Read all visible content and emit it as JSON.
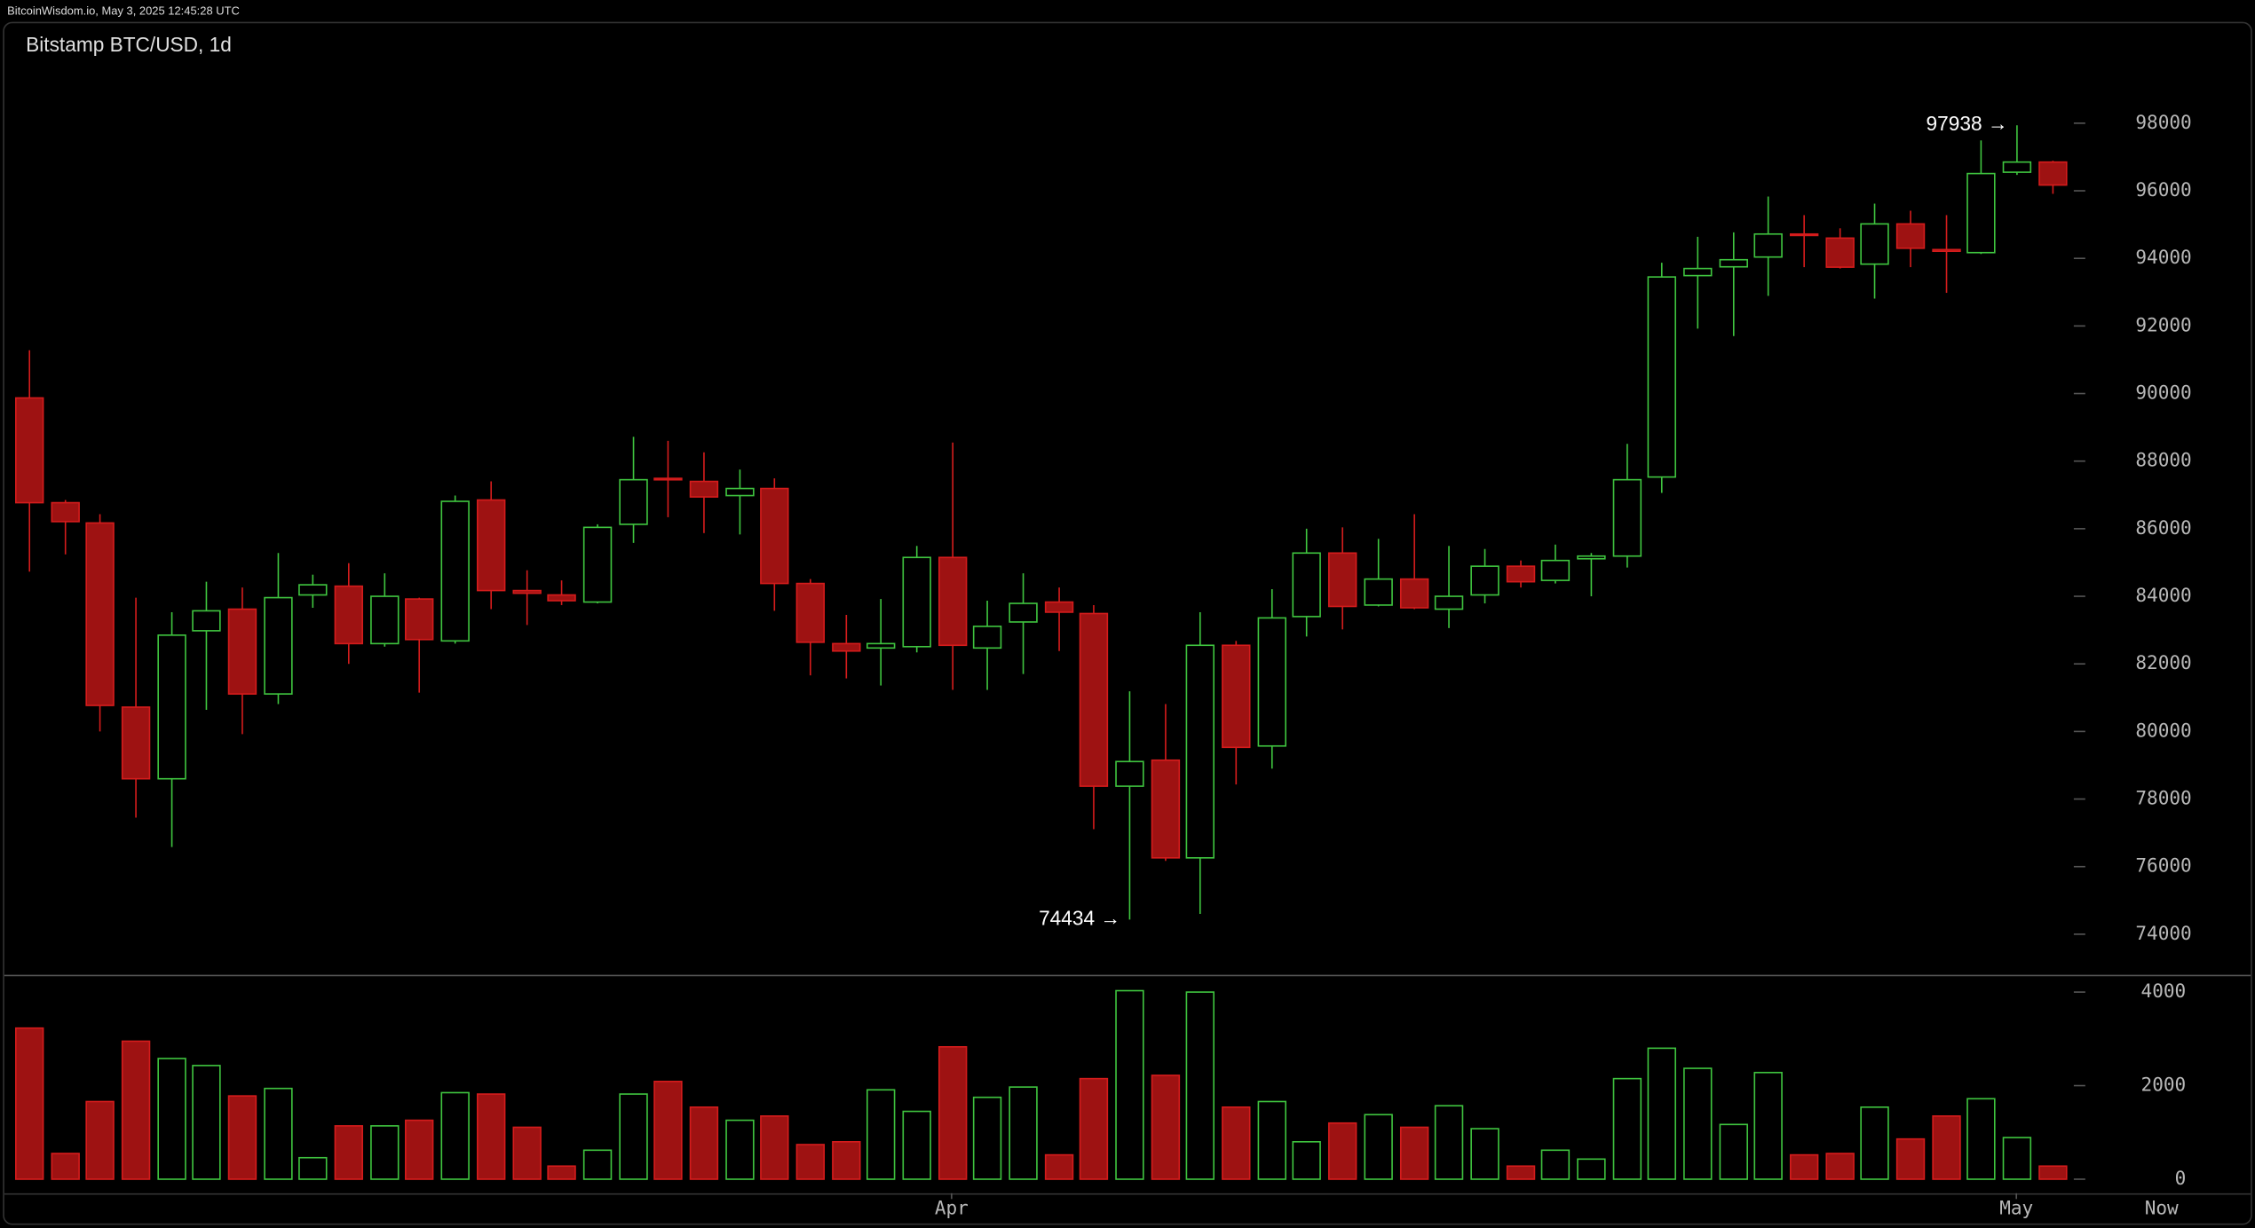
{
  "header": "BitcoinWisdom.io, May 3, 2025 12:45:28 UTC",
  "chart_data": {
    "type": "candlestick",
    "title": "Bitstamp BTC/USD, 1d",
    "categories": [
      null,
      null,
      null,
      null,
      null,
      null,
      null,
      null,
      null,
      null,
      null,
      null,
      null,
      null,
      null,
      null,
      null,
      null,
      null,
      null,
      null,
      null,
      null,
      null,
      null,
      null,
      "Apr",
      null,
      null,
      null,
      null,
      null,
      null,
      null,
      null,
      null,
      null,
      null,
      null,
      null,
      null,
      null,
      null,
      null,
      null,
      null,
      null,
      null,
      null,
      null,
      null,
      null,
      null,
      null,
      null,
      null,
      "May",
      null
    ],
    "now_label": "Now",
    "open": [
      89870,
      86770,
      86170,
      80720,
      78600,
      82980,
      83620,
      81110,
      84040,
      84300,
      82600,
      83920,
      82680,
      86850,
      84170,
      84040,
      83830,
      86130,
      87490,
      87400,
      86980,
      87190,
      84380,
      82600,
      82470,
      82510,
      85150,
      82470,
      83240,
      83830,
      83490,
      78380,
      79150,
      76260,
      82550,
      79570,
      83400,
      85280,
      83740,
      84510,
      83620,
      84040,
      84890,
      84470,
      85110,
      85190,
      87530,
      93490,
      93750,
      94040,
      94720,
      94600,
      93830,
      95020,
      94260,
      94170,
      96550,
      96850
    ],
    "high": [
      91280,
      86850,
      86430,
      83960,
      83530,
      84430,
      84260,
      85280,
      84640,
      84980,
      84680,
      83960,
      86980,
      87400,
      84770,
      84470,
      86130,
      88720,
      88600,
      88260,
      87750,
      87490,
      84510,
      83450,
      83920,
      85490,
      88550,
      83870,
      84680,
      84260,
      83740,
      81190,
      80810,
      83530,
      82680,
      84210,
      86000,
      86040,
      85700,
      86430,
      85490,
      85400,
      85060,
      85530,
      85280,
      88510,
      93870,
      94640,
      94770,
      95830,
      95280,
      94890,
      95620,
      95410,
      95280,
      97490,
      97938,
      96890
    ],
    "low": [
      84730,
      85240,
      80000,
      77450,
      76580,
      80640,
      79920,
      80810,
      83660,
      82000,
      82510,
      81150,
      82600,
      83620,
      83150,
      83740,
      83790,
      85580,
      86340,
      85870,
      85830,
      83570,
      81660,
      81570,
      81360,
      82340,
      81230,
      81230,
      81700,
      82380,
      77110,
      74434,
      76170,
      74600,
      78430,
      78900,
      82810,
      83020,
      83700,
      83620,
      83060,
      83790,
      84260,
      84380,
      84000,
      84850,
      87060,
      91920,
      91700,
      92890,
      93740,
      93700,
      92810,
      93740,
      92980,
      94130,
      96470,
      95910
    ],
    "close": [
      86770,
      86210,
      80770,
      78600,
      82850,
      83570,
      81110,
      83960,
      84340,
      82600,
      84000,
      82720,
      86810,
      84170,
      84090,
      83870,
      86040,
      87450,
      87450,
      86940,
      87190,
      84380,
      82640,
      82380,
      82600,
      85150,
      82550,
      83110,
      83790,
      83530,
      78380,
      79110,
      76260,
      82550,
      79530,
      83360,
      85280,
      83700,
      84510,
      83660,
      84000,
      84890,
      84430,
      85060,
      85190,
      87450,
      93450,
      93700,
      93960,
      94720,
      94680,
      93740,
      95020,
      94300,
      94210,
      96510,
      96850,
      96170
    ],
    "volume": [
      3230,
      550,
      1660,
      2950,
      2580,
      2430,
      1780,
      1940,
      460,
      1140,
      1140,
      1260,
      1850,
      1820,
      1110,
      280,
      620,
      1820,
      2090,
      1540,
      1260,
      1350,
      740,
      800,
      1910,
      1450,
      2830,
      1750,
      1970,
      520,
      2150,
      4030,
      2220,
      4000,
      1540,
      1660,
      800,
      1200,
      1380,
      1110,
      1570,
      1080,
      280,
      620,
      430,
      2150,
      2800,
      2370,
      1170,
      2280,
      520,
      550,
      1540,
      860,
      1350,
      1720,
      890,
      280
    ],
    "high_label": "97938 →",
    "low_label": "74434 →",
    "ylim": [
      72800,
      101000
    ],
    "yticks": [
      74000,
      76000,
      78000,
      80000,
      82000,
      84000,
      86000,
      88000,
      90000,
      92000,
      94000,
      96000,
      98000
    ],
    "vlim": [
      -300,
      4370
    ],
    "vticks": [
      0,
      2000,
      4000
    ],
    "up_color": "#3fc43f",
    "down_color": "#d41c1c",
    "down_fill": "#9e1212",
    "grid": false
  }
}
